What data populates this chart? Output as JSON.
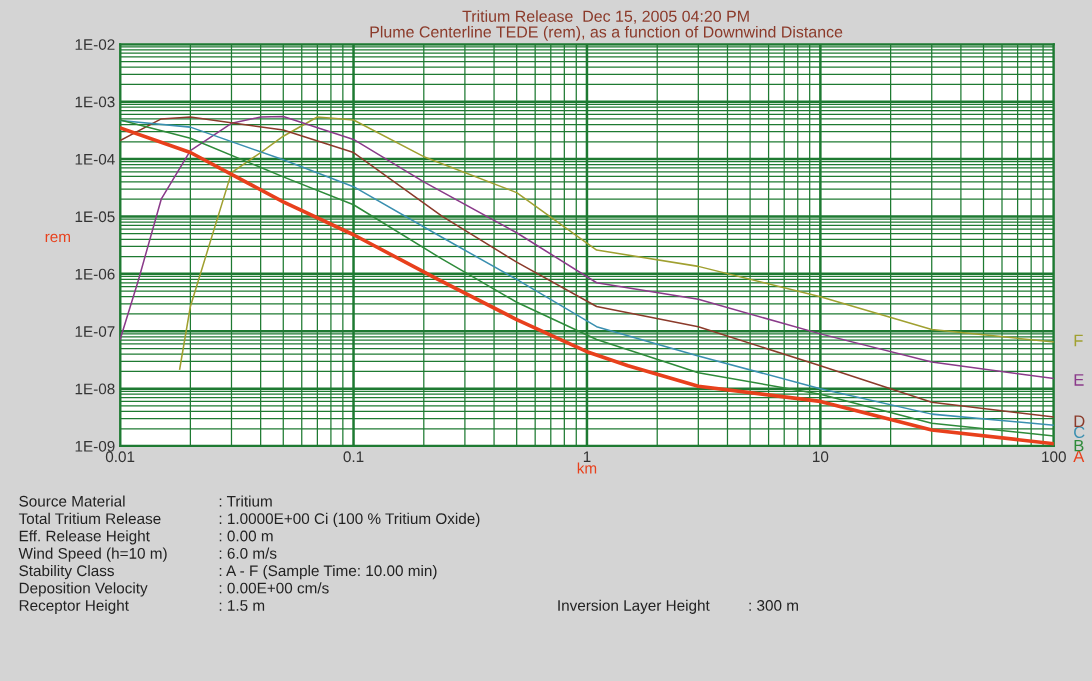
{
  "chart_data": {
    "type": "line",
    "title": "Tritium Release  Dec 15, 2005 04:20 PM",
    "subtitle": "Plume Centerline TEDE (rem), as a function of Downwind Distance",
    "xlabel": "km",
    "ylabel": "rem",
    "log": "xy",
    "grid": true,
    "legend": false,
    "marker": "none",
    "line_style": "solid",
    "xlim": [
      0.01,
      100
    ],
    "xticks": [
      0.01,
      {
        "value": 0.02,
        "label": null
      },
      {
        "value": 0.03,
        "label": null
      },
      {
        "value": 0.04,
        "label": null
      },
      {
        "value": 0.05,
        "label": null
      },
      {
        "value": 0.06,
        "label": null
      },
      {
        "value": 0.07,
        "label": null
      },
      {
        "value": 0.08,
        "label": null
      },
      {
        "value": 0.09,
        "label": null
      },
      0.1,
      {
        "value": 0.2,
        "label": null
      },
      {
        "value": 0.3,
        "label": null
      },
      {
        "value": 0.4,
        "label": null
      },
      {
        "value": 0.5,
        "label": null
      },
      {
        "value": 0.6,
        "label": null
      },
      {
        "value": 0.7,
        "label": null
      },
      {
        "value": 0.8,
        "label": null
      },
      {
        "value": 0.9,
        "label": null
      },
      1,
      {
        "value": 2,
        "label": null
      },
      {
        "value": 3,
        "label": null
      },
      {
        "value": 4,
        "label": null
      },
      {
        "value": 5,
        "label": null
      },
      {
        "value": 6,
        "label": null
      },
      {
        "value": 7,
        "label": null
      },
      {
        "value": 8,
        "label": null
      },
      {
        "value": 9,
        "label": null
      },
      10,
      {
        "value": 20,
        "label": null
      },
      {
        "value": 30,
        "label": null
      },
      {
        "value": 40,
        "label": null
      },
      {
        "value": 50,
        "label": null
      },
      {
        "value": 60,
        "label": null
      },
      {
        "value": 70,
        "label": null
      },
      {
        "value": 80,
        "label": null
      },
      {
        "value": 90,
        "label": null
      },
      100
    ],
    "ylim": [
      1e-09,
      0.01
    ],
    "yticks": [
      {
        "value": 1e-09,
        "label": "1E-09"
      },
      {
        "value": 2e-09,
        "label": null
      },
      {
        "value": 3e-09,
        "label": null
      },
      {
        "value": 4e-09,
        "label": null
      },
      {
        "value": 5e-09,
        "label": null
      },
      {
        "value": 6e-09,
        "label": null
      },
      {
        "value": 7e-09,
        "label": null
      },
      {
        "value": 8e-09,
        "label": null
      },
      {
        "value": 9e-09,
        "label": null
      },
      {
        "value": 1e-08,
        "label": "1E-08"
      },
      {
        "value": 2e-08,
        "label": null
      },
      {
        "value": 3e-08,
        "label": null
      },
      {
        "value": 4e-08,
        "label": null
      },
      {
        "value": 5e-08,
        "label": null
      },
      {
        "value": 6e-08,
        "label": null
      },
      {
        "value": 7e-08,
        "label": null
      },
      {
        "value": 8e-08,
        "label": null
      },
      {
        "value": 9e-08,
        "label": null
      },
      {
        "value": 1e-07,
        "label": "1E-07"
      },
      {
        "value": 2e-07,
        "label": null
      },
      {
        "value": 3e-07,
        "label": null
      },
      {
        "value": 4e-07,
        "label": null
      },
      {
        "value": 5e-07,
        "label": null
      },
      {
        "value": 6e-07,
        "label": null
      },
      {
        "value": 7e-07,
        "label": null
      },
      {
        "value": 8e-07,
        "label": null
      },
      {
        "value": 9e-07,
        "label": null
      },
      {
        "value": 1e-06,
        "label": "1E-06"
      },
      {
        "value": 2e-06,
        "label": null
      },
      {
        "value": 3e-06,
        "label": null
      },
      {
        "value": 4e-06,
        "label": null
      },
      {
        "value": 5e-06,
        "label": null
      },
      {
        "value": 6e-06,
        "label": null
      },
      {
        "value": 7e-06,
        "label": null
      },
      {
        "value": 8e-06,
        "label": null
      },
      {
        "value": 9e-06,
        "label": null
      },
      {
        "value": 1e-05,
        "label": "1E-05"
      },
      {
        "value": 2e-05,
        "label": null
      },
      {
        "value": 3e-05,
        "label": null
      },
      {
        "value": 4e-05,
        "label": null
      },
      {
        "value": 5e-05,
        "label": null
      },
      {
        "value": 6e-05,
        "label": null
      },
      {
        "value": 7e-05,
        "label": null
      },
      {
        "value": 8e-05,
        "label": null
      },
      {
        "value": 9e-05,
        "label": null
      },
      {
        "value": 0.0001,
        "label": "1E-04"
      },
      {
        "value": 0.0002,
        "label": null
      },
      {
        "value": 0.0003,
        "label": null
      },
      {
        "value": 0.0004,
        "label": null
      },
      {
        "value": 0.0005,
        "label": null
      },
      {
        "value": 0.0006,
        "label": null
      },
      {
        "value": 0.0007,
        "label": null
      },
      {
        "value": 0.0008,
        "label": null
      },
      {
        "value": 0.0009,
        "label": null
      },
      {
        "value": 0.001,
        "label": "1E-03"
      },
      {
        "value": 0.002,
        "label": null
      },
      {
        "value": 0.003,
        "label": null
      },
      {
        "value": 0.004,
        "label": null
      },
      {
        "value": 0.005,
        "label": null
      },
      {
        "value": 0.006,
        "label": null
      },
      {
        "value": 0.007,
        "label": null
      },
      {
        "value": 0.008,
        "label": null
      },
      {
        "value": 0.009,
        "label": null
      },
      {
        "value": 0.01,
        "label": "1E-02"
      }
    ],
    "series": [
      {
        "name": "A",
        "color": "#e8401c",
        "x": [
          0.01,
          0.02,
          0.05,
          0.1,
          0.23,
          0.5,
          1,
          1.5,
          3,
          10,
          30,
          100
        ],
        "values": [
          0.00035,
          0.00013,
          1.8e-05,
          4.8e-06,
          8e-07,
          1.6e-07,
          4.4e-08,
          2.5e-08,
          1.1e-08,
          6e-09,
          1.9e-09,
          1.1e-09
        ]
      },
      {
        "name": "B",
        "color": "#2e8b3a",
        "x": [
          0.01,
          0.02,
          0.05,
          0.1,
          0.24,
          0.5,
          1.1,
          3,
          10,
          30,
          100
        ],
        "values": [
          0.00048,
          0.00023,
          4.9e-05,
          1.6e-05,
          1.8e-06,
          3.2e-07,
          7.2e-08,
          1.9e-08,
          8e-09,
          2.5e-09,
          1.5e-09
        ]
      },
      {
        "name": "C",
        "color": "#3a8fb0",
        "x": [
          0.01,
          0.02,
          0.05,
          0.1,
          0.24,
          0.5,
          1.1,
          3,
          10,
          30,
          100
        ],
        "values": [
          0.00047,
          0.00036,
          9.7e-05,
          3.3e-05,
          4.3e-06,
          8e-07,
          1.2e-07,
          3.7e-08,
          1e-08,
          3.6e-09,
          2.3e-09
        ]
      },
      {
        "name": "D",
        "color": "#8b3a2a",
        "x": [
          0.01,
          0.015,
          0.02,
          0.05,
          0.1,
          0.24,
          0.5,
          1.1,
          3,
          10,
          30,
          100
        ],
        "values": [
          0.00021,
          0.0005,
          0.00054,
          0.00032,
          0.00013,
          1e-05,
          1.6e-06,
          2.7e-07,
          1.2e-07,
          2.5e-08,
          5.8e-09,
          3.2e-09
        ]
      },
      {
        "name": "E",
        "color": "#8a3a8a",
        "x": [
          0.01,
          0.012,
          0.015,
          0.02,
          0.03,
          0.04,
          0.05,
          0.1,
          0.2,
          0.5,
          1.1,
          3,
          10,
          30,
          100
        ],
        "values": [
          7.2e-08,
          8e-07,
          2e-05,
          0.00014,
          0.00042,
          0.00054,
          0.00055,
          0.00022,
          4e-05,
          5.2e-06,
          7e-07,
          3.6e-07,
          9e-08,
          2.9e-08,
          1.5e-08
        ]
      },
      {
        "name": "F",
        "color": "#a0a030",
        "x": [
          0.018,
          0.02,
          0.03,
          0.04,
          0.05,
          0.07,
          0.1,
          0.2,
          0.5,
          1.1,
          3,
          10,
          30,
          100
        ],
        "values": [
          2.2e-08,
          2.7e-07,
          5.8e-05,
          0.00013,
          0.00025,
          0.00054,
          0.00048,
          0.00011,
          2.6e-05,
          2.6e-06,
          1.35e-06,
          4e-07,
          1.07e-07,
          6.5e-08
        ]
      }
    ],
    "annotations": [
      "Source Material",
      ": Tritium",
      "Total Tritium Release",
      ": 1.0000E+00 Ci (100 % Tritium Oxide)",
      "Eff. Release Height",
      ": 0.00 m",
      "Wind Speed (h=10 m)",
      ": 6.0 m/s",
      "Stability Class",
      ": A - F (Sample Time: 10.00 min)",
      "Deposition Velocity",
      ": 0.00E+00 cm/s",
      "Receptor Height",
      ": 1.5 m",
      "Inversion Layer Height",
      ": 300 m"
    ]
  }
}
